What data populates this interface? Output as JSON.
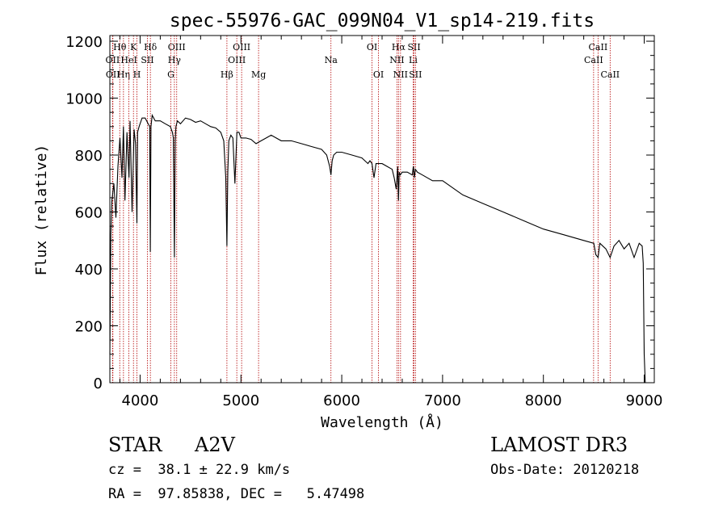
{
  "chart_data": {
    "type": "line",
    "title": "spec-55976-GAC_099N04_V1_sp14-219.fits",
    "xlabel": "Wavelength (Å)",
    "ylabel": "Flux (relative)",
    "xlim": [
      3700,
      9100
    ],
    "ylim": [
      0,
      1220
    ],
    "xticks": [
      4000,
      5000,
      6000,
      7000,
      8000,
      9000
    ],
    "yticks": [
      0,
      200,
      400,
      600,
      800,
      1000,
      1200
    ],
    "grid": false,
    "series": [
      {
        "name": "flux",
        "x": [
          3700,
          3710,
          3720,
          3740,
          3760,
          3780,
          3800,
          3820,
          3835,
          3850,
          3870,
          3890,
          3900,
          3920,
          3940,
          3955,
          3968,
          3975,
          3990,
          4000,
          4020,
          4050,
          4080,
          4095,
          4101,
          4108,
          4120,
          4150,
          4200,
          4250,
          4300,
          4320,
          4330,
          4340,
          4348,
          4355,
          4370,
          4400,
          4450,
          4500,
          4550,
          4600,
          4650,
          4700,
          4750,
          4800,
          4830,
          4850,
          4861,
          4870,
          4880,
          4900,
          4920,
          4940,
          4960,
          4980,
          5000,
          5050,
          5100,
          5150,
          5200,
          5250,
          5300,
          5400,
          5500,
          5600,
          5700,
          5800,
          5850,
          5880,
          5893,
          5905,
          5920,
          5950,
          6000,
          6100,
          6200,
          6260,
          6280,
          6300,
          6320,
          6340,
          6400,
          6450,
          6500,
          6520,
          6540,
          6555,
          6563,
          6570,
          6580,
          6600,
          6650,
          6700,
          6710,
          6720,
          6730,
          6750,
          6800,
          6900,
          7000,
          7200,
          7400,
          7600,
          7800,
          8000,
          8200,
          8400,
          8500,
          8520,
          8542,
          8560,
          8620,
          8662,
          8700,
          8750,
          8800,
          8850,
          8900,
          8950,
          8980,
          8990,
          9000,
          9010
        ],
        "values": [
          100,
          520,
          640,
          700,
          580,
          760,
          860,
          720,
          900,
          640,
          880,
          720,
          920,
          600,
          890,
          840,
          560,
          880,
          900,
          910,
          930,
          930,
          910,
          900,
          460,
          900,
          940,
          920,
          920,
          910,
          900,
          880,
          860,
          440,
          850,
          900,
          920,
          910,
          930,
          925,
          915,
          920,
          910,
          900,
          895,
          880,
          850,
          720,
          480,
          740,
          850,
          870,
          860,
          700,
          880,
          880,
          860,
          860,
          855,
          840,
          850,
          860,
          870,
          850,
          850,
          840,
          830,
          820,
          800,
          760,
          730,
          780,
          800,
          810,
          810,
          800,
          790,
          770,
          780,
          770,
          720,
          770,
          770,
          760,
          750,
          720,
          680,
          760,
          640,
          740,
          730,
          740,
          740,
          730,
          760,
          720,
          750,
          740,
          730,
          710,
          710,
          660,
          630,
          600,
          570,
          540,
          520,
          500,
          490,
          450,
          440,
          490,
          470,
          440,
          480,
          500,
          470,
          490,
          440,
          490,
          480,
          420,
          100,
          0
        ]
      }
    ],
    "lines": [
      {
        "label": "Hθ",
        "x": 3798,
        "row": 1
      },
      {
        "label": "OII",
        "x": 3727,
        "row": 2
      },
      {
        "label": "OII",
        "x": 3730,
        "row": 3
      },
      {
        "label": "Hη",
        "x": 3835,
        "row": 3
      },
      {
        "label": "HeI",
        "x": 3889,
        "row": 2
      },
      {
        "label": "K",
        "x": 3934,
        "row": 1
      },
      {
        "label": "H",
        "x": 3969,
        "row": 3
      },
      {
        "label": "SII",
        "x": 4072,
        "row": 2
      },
      {
        "label": "Hδ",
        "x": 4102,
        "row": 1
      },
      {
        "label": "OIII",
        "x": 4363,
        "row": 1
      },
      {
        "label": "Hγ",
        "x": 4340,
        "row": 2
      },
      {
        "label": "G",
        "x": 4305,
        "row": 3
      },
      {
        "label": "Hβ",
        "x": 4861,
        "row": 3
      },
      {
        "label": "OIII",
        "x": 5007,
        "row": 1
      },
      {
        "label": "OIII",
        "x": 4959,
        "row": 2
      },
      {
        "label": "Mg",
        "x": 5175,
        "row": 3
      },
      {
        "label": "Na",
        "x": 5893,
        "row": 2
      },
      {
        "label": "OI",
        "x": 6300,
        "row": 1
      },
      {
        "label": "OI",
        "x": 6364,
        "row": 3
      },
      {
        "label": "Hα",
        "x": 6563,
        "row": 1
      },
      {
        "label": "NII",
        "x": 6548,
        "row": 2
      },
      {
        "label": "NII",
        "x": 6583,
        "row": 3
      },
      {
        "label": "SII",
        "x": 6717,
        "row": 1
      },
      {
        "label": "Li",
        "x": 6708,
        "row": 2
      },
      {
        "label": "SII",
        "x": 6731,
        "row": 3
      },
      {
        "label": "CaII",
        "x": 8542,
        "row": 1
      },
      {
        "label": "CaII",
        "x": 8498,
        "row": 2
      },
      {
        "label": "CaII",
        "x": 8662,
        "row": 3
      }
    ]
  },
  "info": {
    "object_class": "STAR",
    "subclass": "A2V",
    "survey": "LAMOST DR3",
    "redshift": "cz =  38.1 ± 22.9 km/s",
    "obs_date": "Obs-Date: 20120218",
    "coords": "RA =  97.85838, DEC =   5.47498"
  },
  "colors": {
    "line_marker": "#b30000",
    "spectrum": "#000000",
    "axes": "#000000"
  }
}
